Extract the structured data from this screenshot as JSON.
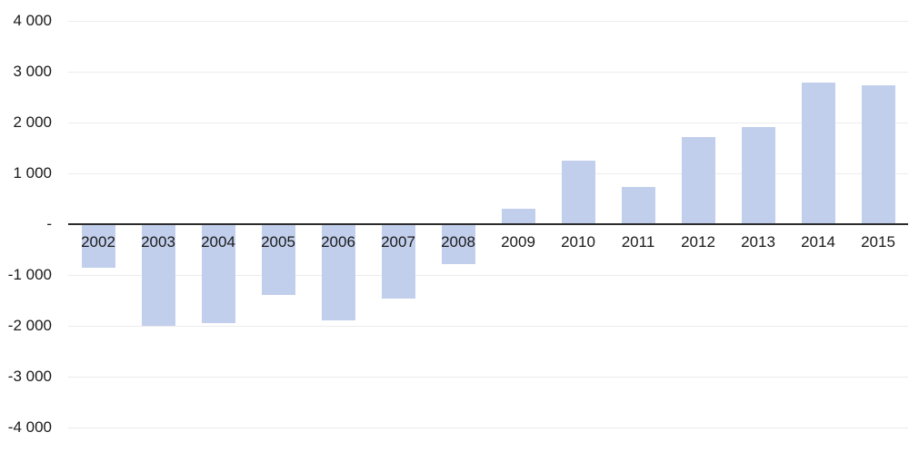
{
  "chart_data": {
    "type": "bar",
    "title": "",
    "xlabel": "",
    "ylabel": "",
    "categories": [
      "2002",
      "2003",
      "2004",
      "2005",
      "2006",
      "2007",
      "2008",
      "2009",
      "2010",
      "2011",
      "2012",
      "2013",
      "2014",
      "2015"
    ],
    "values": [
      -850,
      -2000,
      -1950,
      -1400,
      -1890,
      -1470,
      -790,
      300,
      1250,
      730,
      1720,
      1910,
      2790,
      2740
    ],
    "ylim": [
      -4000,
      4000
    ],
    "yticks": [
      {
        "value": 4000,
        "label": "4 000"
      },
      {
        "value": 3000,
        "label": "3 000"
      },
      {
        "value": 2000,
        "label": "2 000"
      },
      {
        "value": 1000,
        "label": "1 000"
      },
      {
        "value": 0,
        "label": "-"
      },
      {
        "value": -1000,
        "label": "-1 000"
      },
      {
        "value": -2000,
        "label": "-2 000"
      },
      {
        "value": -3000,
        "label": "-3 000"
      },
      {
        "value": -4000,
        "label": "-4 000"
      }
    ],
    "grid": "horizontal",
    "legend": "none",
    "colors": {
      "bar_fill": "#c2cfec",
      "gridline": "#ececec",
      "zero_axis": "#2b2b2b",
      "text": "#1a1a1a"
    }
  }
}
